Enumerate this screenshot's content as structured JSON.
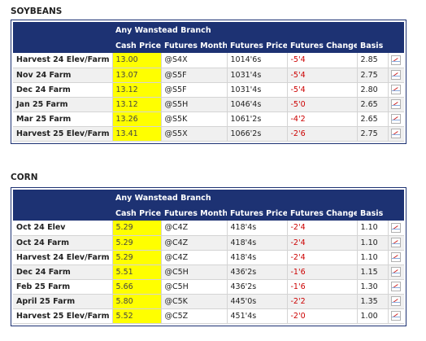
{
  "soybeans": {
    "title": "SOYBEANS",
    "branch": "Any Wanstead Branch",
    "headers": [
      "Cash Price",
      "Futures Month",
      "Futures Price",
      "Futures Change",
      "Basis"
    ],
    "rows": [
      {
        "location": "Harvest 24 Elev/Farm",
        "cash": "13.00",
        "month": "@S4X",
        "price": "1014'6s",
        "change": "-5'4",
        "basis": "2.85"
      },
      {
        "location": "Nov 24 Farm",
        "cash": "13.07",
        "month": "@S5F",
        "price": "1031'4s",
        "change": "-5'4",
        "basis": "2.75"
      },
      {
        "location": "Dec 24 Farm",
        "cash": "13.12",
        "month": "@S5F",
        "price": "1031'4s",
        "change": "-5'4",
        "basis": "2.80"
      },
      {
        "location": "Jan 25 Farm",
        "cash": "13.12",
        "month": "@S5H",
        "price": "1046'4s",
        "change": "-5'0",
        "basis": "2.65"
      },
      {
        "location": "Mar 25 Farm",
        "cash": "13.26",
        "month": "@S5K",
        "price": "1061'2s",
        "change": "-4'2",
        "basis": "2.65"
      },
      {
        "location": "Harvest 25 Elev/Farm",
        "cash": "13.41",
        "month": "@S5X",
        "price": "1066'2s",
        "change": "-2'6",
        "basis": "2.75"
      }
    ]
  },
  "corn": {
    "title": "CORN",
    "branch": "Any Wanstead Branch",
    "headers": [
      "Cash Price",
      "Futures Month",
      "Futures Price",
      "Futures Change",
      "Basis"
    ],
    "rows": [
      {
        "location": "Oct 24 Elev",
        "cash": "5.29",
        "month": "@C4Z",
        "price": "418'4s",
        "change": "-2'4",
        "basis": "1.10"
      },
      {
        "location": "Oct 24 Farm",
        "cash": "5.29",
        "month": "@C4Z",
        "price": "418'4s",
        "change": "-2'4",
        "basis": "1.10"
      },
      {
        "location": "Harvest 24 Elev/Farm",
        "cash": "5.29",
        "month": "@C4Z",
        "price": "418'4s",
        "change": "-2'4",
        "basis": "1.10"
      },
      {
        "location": "Dec 24 Farm",
        "cash": "5.51",
        "month": "@C5H",
        "price": "436'2s",
        "change": "-1'6",
        "basis": "1.15"
      },
      {
        "location": "Feb 25 Farm",
        "cash": "5.66",
        "month": "@C5H",
        "price": "436'2s",
        "change": "-1'6",
        "basis": "1.30"
      },
      {
        "location": "April 25 Farm",
        "cash": "5.80",
        "month": "@C5K",
        "price": "445'0s",
        "change": "-2'2",
        "basis": "1.35"
      },
      {
        "location": "Harvest 25 Elev/Farm",
        "cash": "5.52",
        "month": "@C5Z",
        "price": "451'4s",
        "change": "-2'0",
        "basis": "1.00"
      }
    ]
  },
  "icons": {
    "row_chart": "chart-icon"
  },
  "colors": {
    "header_bg": "#1d3273",
    "cash_highlight": "#ffff00",
    "change_negative": "#cc0000"
  }
}
